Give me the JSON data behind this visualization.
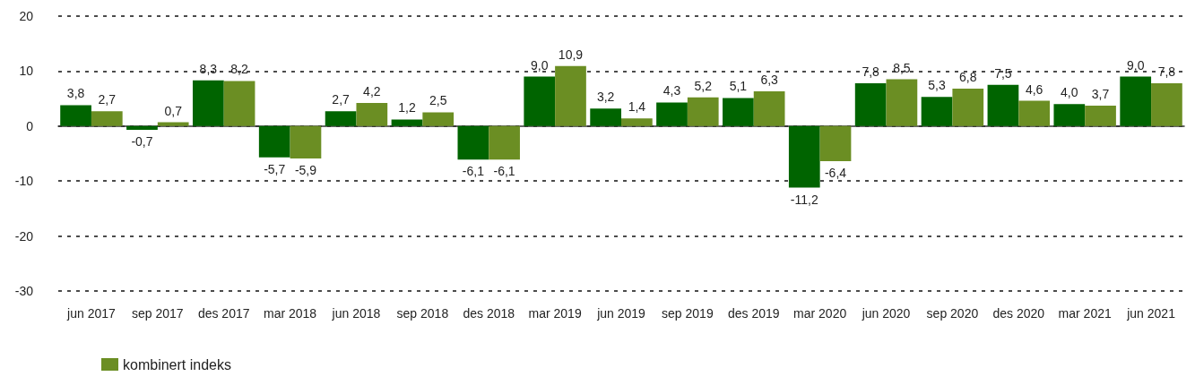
{
  "chart_data": {
    "type": "bar",
    "categories": [
      "jun 2017",
      "sep 2017",
      "des 2017",
      "mar 2018",
      "jun 2018",
      "sep 2018",
      "des 2018",
      "mar 2019",
      "jun 2019",
      "sep 2019",
      "des 2019",
      "mar 2020",
      "jun 2020",
      "sep 2020",
      "des 2020",
      "mar 2021",
      "jun 2021"
    ],
    "series": [
      {
        "color": "#006400",
        "values": [
          3.8,
          -0.7,
          8.3,
          -5.7,
          2.7,
          1.2,
          -6.1,
          9.0,
          3.2,
          4.3,
          5.1,
          -11.2,
          7.8,
          5.3,
          7.5,
          4.0,
          9.0
        ],
        "value_labels": [
          "3,8",
          "-0,7",
          "8,3",
          "-5,7",
          "2,7",
          "1,2",
          "-6,1",
          "9,0",
          "3,2",
          "4,3",
          "5,1",
          "-11,2",
          "7,8",
          "5,3",
          "7,5",
          "4,0",
          "9,0"
        ]
      },
      {
        "name": "kombinert indeks",
        "color": "#6b8e23",
        "values": [
          2.7,
          0.7,
          8.2,
          -5.9,
          4.2,
          2.5,
          -6.1,
          10.9,
          1.4,
          5.2,
          6.3,
          -6.4,
          8.5,
          6.8,
          4.6,
          3.7,
          7.8
        ],
        "value_labels": [
          "2,7",
          "0,7",
          "8,2",
          "-5,9",
          "4,2",
          "2,5",
          "-6,1",
          "10,9",
          "1,4",
          "5,2",
          "6,3",
          "-6,4",
          "8,5",
          "6,8",
          "4,6",
          "3,7",
          "7,8"
        ]
      }
    ],
    "ylim": [
      -30,
      20
    ],
    "yticks": [
      -30,
      -20,
      -10,
      0,
      10,
      20
    ],
    "grid": "y",
    "legend": "bottom"
  }
}
